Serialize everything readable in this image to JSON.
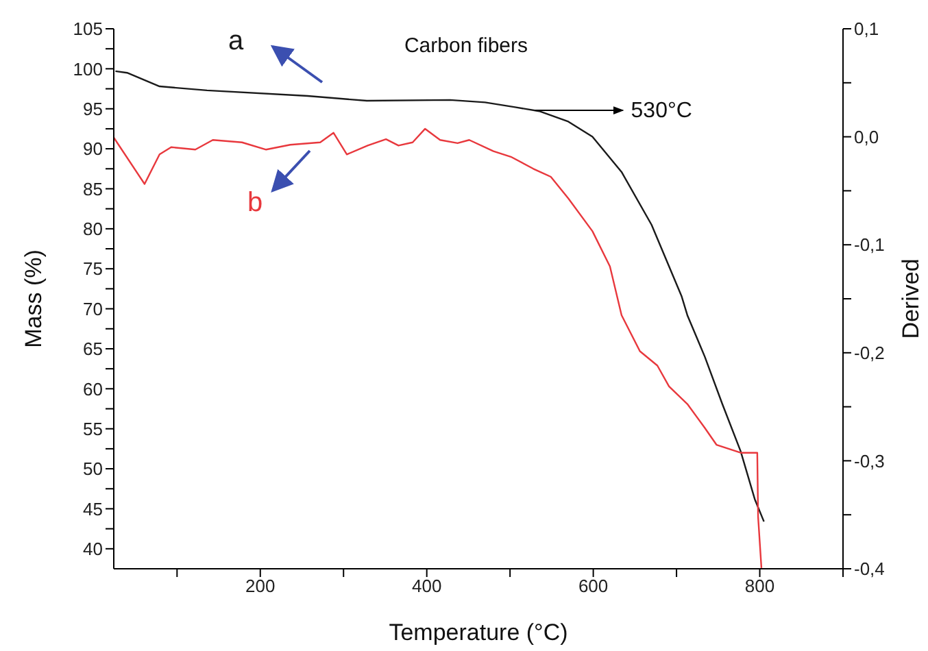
{
  "chart_data": {
    "type": "line",
    "title": "Carbon fibers",
    "xlabel": "Temperature (°C)",
    "ylabel": "Mass (%)",
    "y2label": "Derived",
    "xlim": [
      24,
      900
    ],
    "xticks": [
      {
        "value": 100,
        "label": null
      },
      200,
      {
        "value": 300,
        "label": null
      },
      400,
      {
        "value": 500,
        "label": null
      },
      600,
      {
        "value": 700,
        "label": null
      },
      800,
      {
        "value": 900,
        "label": null
      }
    ],
    "ylim": [
      37.5,
      105
    ],
    "yticks": [
      40,
      {
        "value": 42.5,
        "label": null
      },
      45,
      {
        "value": 47.5,
        "label": null
      },
      50,
      {
        "value": 52.5,
        "label": null
      },
      55,
      {
        "value": 57.5,
        "label": null
      },
      60,
      {
        "value": 62.5,
        "label": null
      },
      65,
      {
        "value": 67.5,
        "label": null
      },
      70,
      {
        "value": 72.5,
        "label": null
      },
      75,
      {
        "value": 77.5,
        "label": null
      },
      80,
      {
        "value": 82.5,
        "label": null
      },
      85,
      {
        "value": 87.5,
        "label": null
      },
      90,
      {
        "value": 92.5,
        "label": null
      },
      95,
      {
        "value": 97.5,
        "label": null
      },
      100,
      {
        "value": 102.5,
        "label": null
      },
      105
    ],
    "y2lim": [
      -0.4,
      0.1
    ],
    "y2ticks": [
      {
        "value": -0.4,
        "label": "-0,4"
      },
      {
        "value": -0.35,
        "label": null
      },
      {
        "value": -0.3,
        "label": "-0,3"
      },
      {
        "value": -0.25,
        "label": null
      },
      {
        "value": -0.2,
        "label": "-0,2"
      },
      {
        "value": -0.15,
        "label": null
      },
      {
        "value": -0.1,
        "label": "-0,1"
      },
      {
        "value": -0.05,
        "label": null
      },
      {
        "value": 0,
        "label": "0,0"
      },
      {
        "value": 0.05,
        "label": null
      },
      {
        "value": 0.1,
        "label": "0,1"
      }
    ],
    "marker": "none",
    "line_style": "solid",
    "annotations": [
      {
        "text": "530°C",
        "x": 530,
        "y": 94.8
      }
    ],
    "series": [
      {
        "name": "a",
        "color": "#1a1a1a",
        "x": [
          26,
          40,
          79,
          136,
          257,
          328,
          428,
          470,
          506,
          535,
          570,
          599,
          634,
          670,
          706,
          713,
          734,
          755,
          777,
          794,
          805
        ],
        "values": [
          99.7,
          99.5,
          97.8,
          97.3,
          96.6,
          96.0,
          96.1,
          95.8,
          95.2,
          94.7,
          93.4,
          91.5,
          87.1,
          80.5,
          71.6,
          69.2,
          64.0,
          58.1,
          52.2,
          46.2,
          43.4
        ]
      },
      {
        "name": "b",
        "color": "#e8383d",
        "x": [
          24,
          61,
          79,
          93,
          122,
          143,
          178,
          207,
          236,
          272,
          288,
          304,
          329,
          351,
          366,
          383,
          398,
          416,
          437,
          451,
          480,
          501,
          528,
          549,
          570,
          599,
          620,
          634,
          656,
          677,
          691,
          713,
          734,
          748,
          777,
          797,
          798,
          802
        ],
        "values": [
          91.4,
          85.6,
          89.3,
          90.2,
          89.9,
          91.1,
          90.8,
          89.9,
          90.5,
          90.8,
          92.0,
          89.3,
          90.4,
          91.2,
          90.4,
          90.8,
          92.5,
          91.1,
          90.7,
          91.1,
          89.7,
          89.0,
          87.5,
          86.5,
          83.8,
          79.7,
          75.3,
          69.2,
          64.7,
          62.9,
          60.3,
          58.1,
          55.1,
          53.0,
          52.0,
          52.0,
          44.0,
          37.6
        ]
      }
    ]
  }
}
